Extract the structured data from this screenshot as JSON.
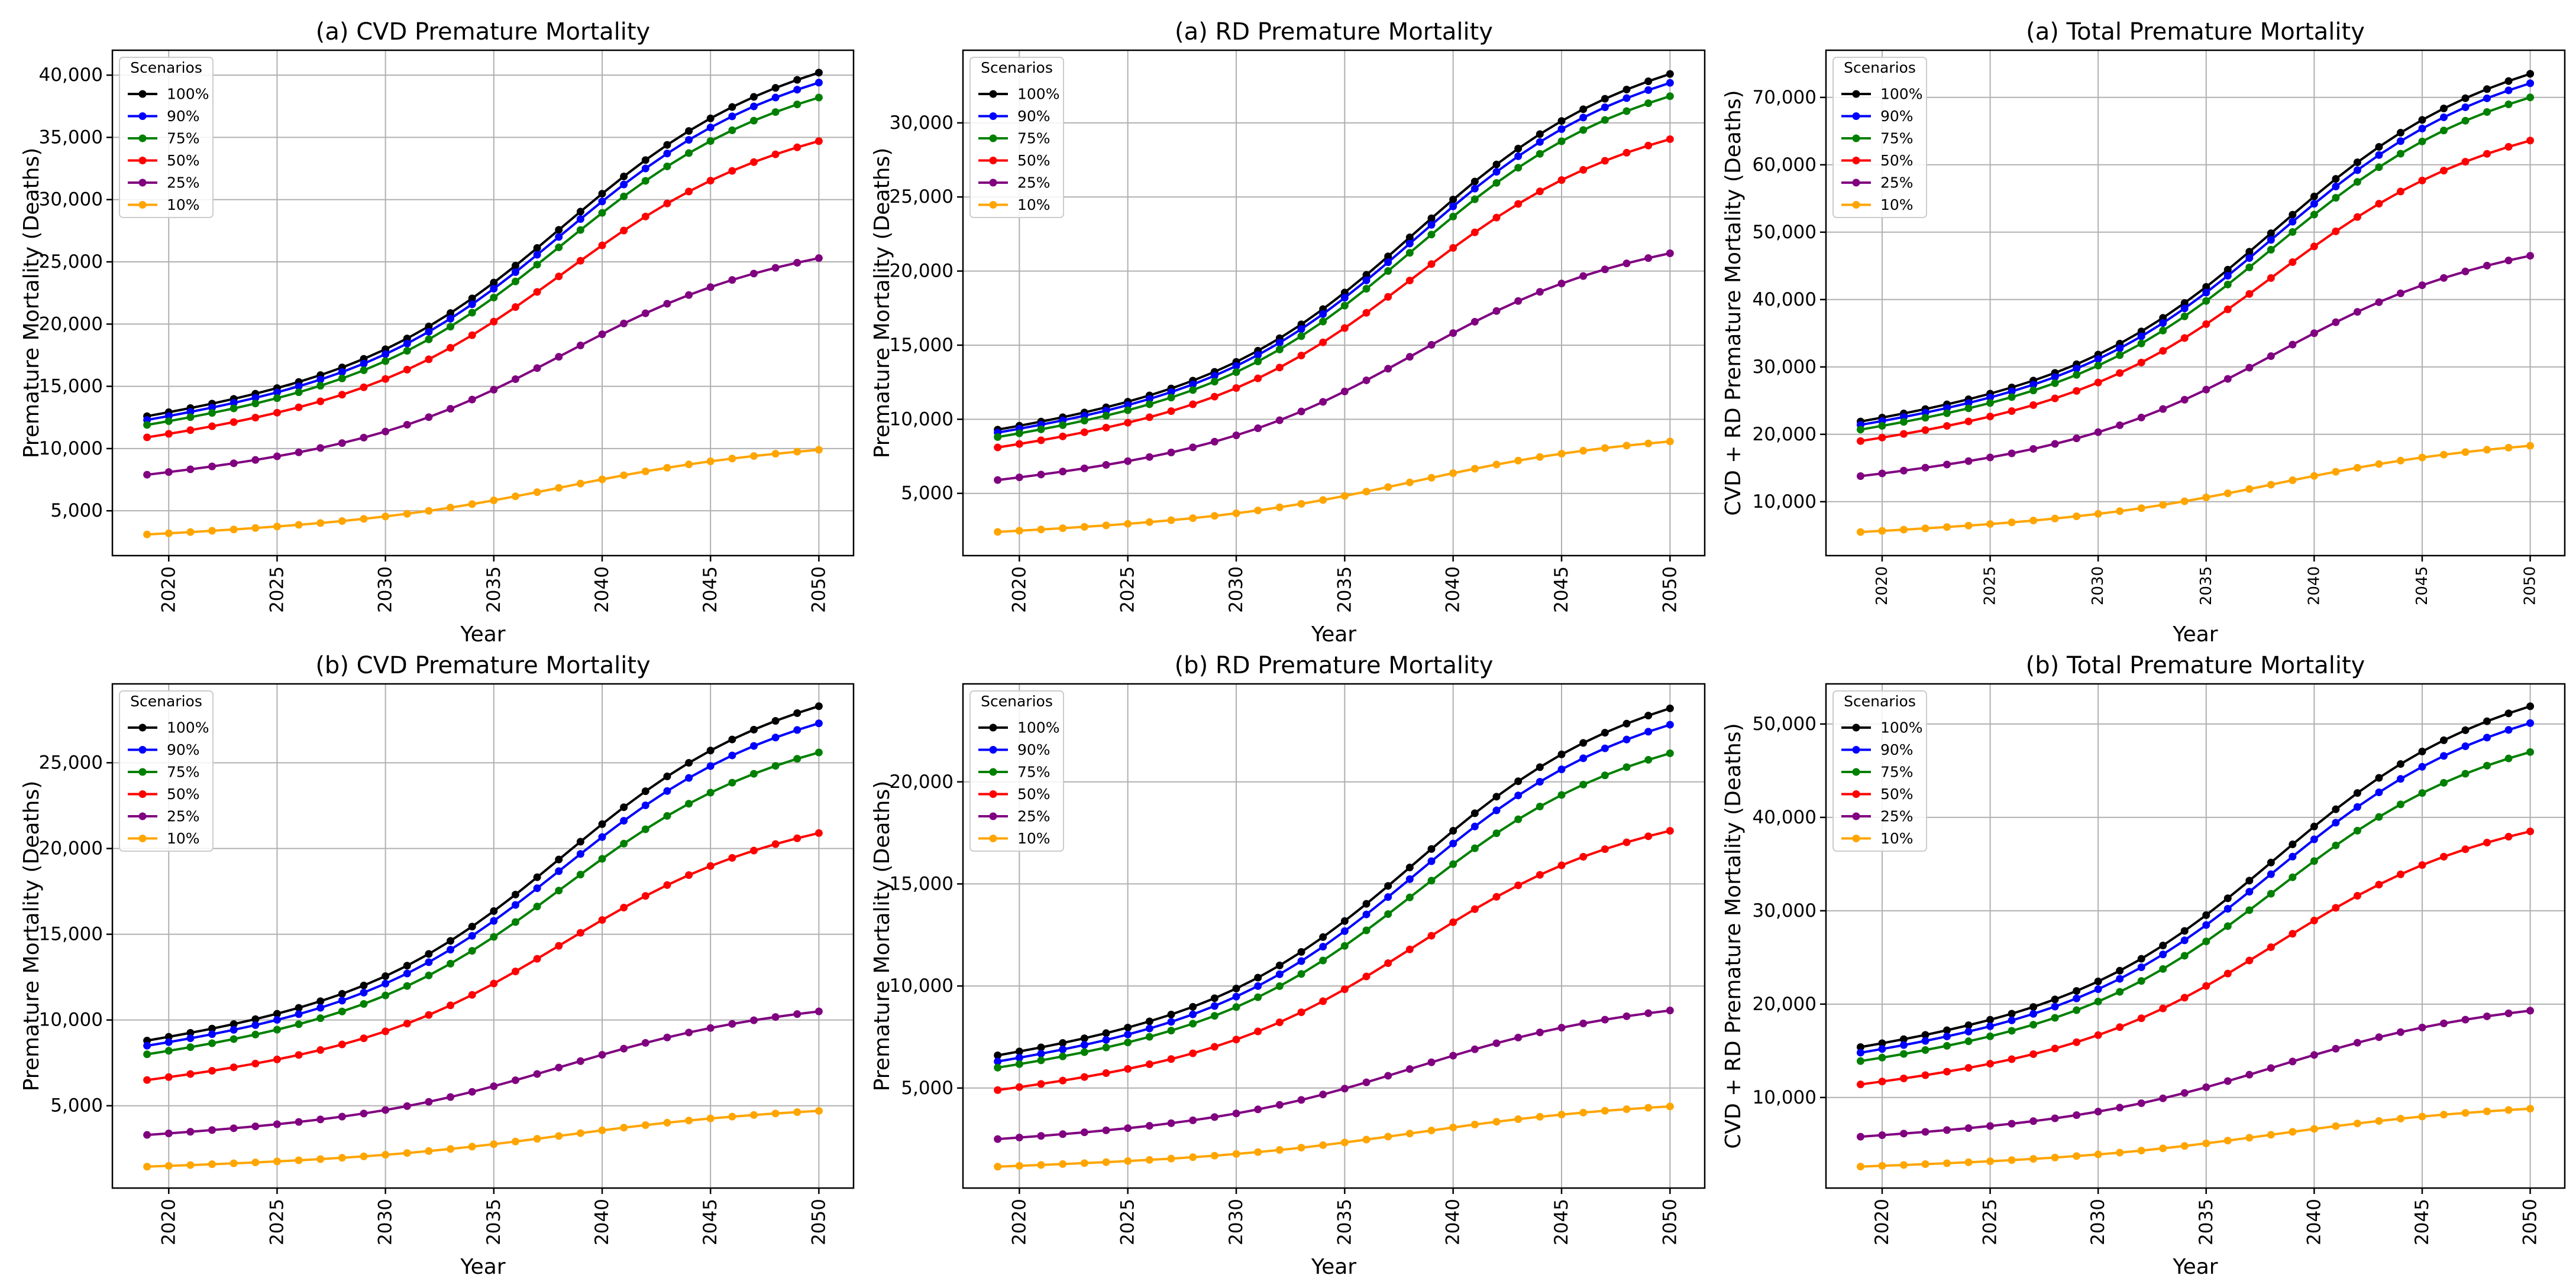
{
  "colors": {
    "100%": "#000000",
    "90%": "#0000ff",
    "75%": "#008000",
    "50%": "#ff0000",
    "25%": "#800080",
    "10%": "#ffa500",
    "grid": "#b0b0b0"
  },
  "chart_data": [
    {
      "type": "line",
      "title": "(a) CVD Premature Mortality",
      "xlabel": "Year",
      "ylabel": "Premature Mortality (Deaths)",
      "legend_title": "Scenarios",
      "legend_position": "top-left",
      "grid": true,
      "x": [
        2019,
        2020,
        2021,
        2022,
        2023,
        2024,
        2025,
        2026,
        2027,
        2028,
        2029,
        2030,
        2031,
        2032,
        2033,
        2034,
        2035,
        2036,
        2037,
        2038,
        2039,
        2040,
        2041,
        2042,
        2043,
        2044,
        2045,
        2046,
        2047,
        2048,
        2049,
        2050
      ],
      "xlim": [
        2017.4,
        2051.6
      ],
      "xticks": [
        2020,
        2025,
        2030,
        2035,
        2040,
        2045,
        2050
      ],
      "xtick_labels": [
        "2020",
        "2025",
        "2030",
        "2035",
        "2040",
        "2045",
        "2050"
      ],
      "ylim": [
        1400,
        42000
      ],
      "yticks": [
        5000,
        10000,
        15000,
        20000,
        25000,
        30000,
        35000,
        40000
      ],
      "ytick_labels": [
        "5,000",
        "10,000",
        "15,000",
        "20,000",
        "25,000",
        "30,000",
        "35,000",
        "40,000"
      ],
      "series": [
        {
          "name": "100%",
          "start": 12600,
          "end": 40200,
          "mid": 0.28
        },
        {
          "name": "90%",
          "start": 12300,
          "end": 39400,
          "mid": 0.28
        },
        {
          "name": "75%",
          "start": 11900,
          "end": 38200,
          "mid": 0.28
        },
        {
          "name": "50%",
          "start": 10900,
          "end": 34700,
          "mid": 0.29
        },
        {
          "name": "25%",
          "start": 7900,
          "end": 25300,
          "mid": 0.3
        },
        {
          "name": "10%",
          "start": 3100,
          "end": 9900,
          "mid": 0.36
        }
      ]
    },
    {
      "type": "line",
      "title": "(a) RD Premature Mortality",
      "xlabel": "Year",
      "ylabel": "Premature Mortality (Deaths)",
      "legend_title": "Scenarios",
      "legend_position": "top-left",
      "grid": true,
      "x": [
        2019,
        2020,
        2021,
        2022,
        2023,
        2024,
        2025,
        2026,
        2027,
        2028,
        2029,
        2030,
        2031,
        2032,
        2033,
        2034,
        2035,
        2036,
        2037,
        2038,
        2039,
        2040,
        2041,
        2042,
        2043,
        2044,
        2045,
        2046,
        2047,
        2048,
        2049,
        2050
      ],
      "xlim": [
        2017.4,
        2051.6
      ],
      "xticks": [
        2020,
        2025,
        2030,
        2035,
        2040,
        2045,
        2050
      ],
      "xtick_labels": [
        "2020",
        "2025",
        "2030",
        "2035",
        "2040",
        "2045",
        "2050"
      ],
      "ylim": [
        800,
        34900
      ],
      "yticks": [
        5000,
        10000,
        15000,
        20000,
        25000,
        30000
      ],
      "ytick_labels": [
        "5,000",
        "10,000",
        "15,000",
        "20,000",
        "25,000",
        "30,000"
      ],
      "series": [
        {
          "name": "100%",
          "start": 9300,
          "end": 33300,
          "mid": 0.26
        },
        {
          "name": "90%",
          "start": 9100,
          "end": 32700,
          "mid": 0.26
        },
        {
          "name": "75%",
          "start": 8800,
          "end": 31800,
          "mid": 0.26
        },
        {
          "name": "50%",
          "start": 8100,
          "end": 28900,
          "mid": 0.27
        },
        {
          "name": "25%",
          "start": 5900,
          "end": 21200,
          "mid": 0.29
        },
        {
          "name": "10%",
          "start": 2400,
          "end": 8500,
          "mid": 0.33
        }
      ]
    },
    {
      "type": "line",
      "title": "(a) Total Premature Mortality",
      "xlabel": "Year",
      "ylabel": "CVD + RD Premature Mortality (Deaths)",
      "legend_title": "Scenarios",
      "legend_position": "top-left",
      "grid": true,
      "x": [
        2019,
        2020,
        2021,
        2022,
        2023,
        2024,
        2025,
        2026,
        2027,
        2028,
        2029,
        2030,
        2031,
        2032,
        2033,
        2034,
        2035,
        2036,
        2037,
        2038,
        2039,
        2040,
        2041,
        2042,
        2043,
        2044,
        2045,
        2046,
        2047,
        2048,
        2049,
        2050
      ],
      "xlim": [
        2017.4,
        2051.6
      ],
      "xticks": [
        2020,
        2025,
        2030,
        2035,
        2040,
        2045,
        2050
      ],
      "xtick_labels": [
        "2020",
        "2025",
        "2030",
        "2035",
        "2040",
        "2045",
        "2050"
      ],
      "ylim": [
        2000,
        77000
      ],
      "yticks": [
        10000,
        20000,
        30000,
        40000,
        50000,
        60000,
        70000
      ],
      "ytick_labels": [
        "10,000",
        "20,000",
        "30,000",
        "40,000",
        "50,000",
        "60,000",
        "70,000"
      ],
      "series": [
        {
          "name": "100%",
          "start": 21900,
          "end": 73500,
          "mid": 0.27
        },
        {
          "name": "90%",
          "start": 21400,
          "end": 72100,
          "mid": 0.27
        },
        {
          "name": "75%",
          "start": 20700,
          "end": 70000,
          "mid": 0.27
        },
        {
          "name": "50%",
          "start": 19000,
          "end": 63600,
          "mid": 0.28
        },
        {
          "name": "25%",
          "start": 13800,
          "end": 46500,
          "mid": 0.3
        },
        {
          "name": "10%",
          "start": 5500,
          "end": 18300,
          "mid": 0.35
        }
      ]
    },
    {
      "type": "line",
      "title": "(b) CVD Premature Mortality",
      "xlabel": "Year",
      "ylabel": "Premature Mortality (Deaths)",
      "legend_title": "Scenarios",
      "legend_position": "top-left",
      "grid": true,
      "x": [
        2019,
        2020,
        2021,
        2022,
        2023,
        2024,
        2025,
        2026,
        2027,
        2028,
        2029,
        2030,
        2031,
        2032,
        2033,
        2034,
        2035,
        2036,
        2037,
        2038,
        2039,
        2040,
        2041,
        2042,
        2043,
        2044,
        2045,
        2046,
        2047,
        2048,
        2049,
        2050
      ],
      "xlim": [
        2017.4,
        2051.6
      ],
      "xticks": [
        2020,
        2025,
        2030,
        2035,
        2040,
        2045,
        2050
      ],
      "xtick_labels": [
        "2020",
        "2025",
        "2030",
        "2035",
        "2040",
        "2045",
        "2050"
      ],
      "ylim": [
        200,
        29600
      ],
      "yticks": [
        5000,
        10000,
        15000,
        20000,
        25000
      ],
      "ytick_labels": [
        "5,000",
        "10,000",
        "15,000",
        "20,000",
        "25,000"
      ],
      "series": [
        {
          "name": "100%",
          "start": 8800,
          "end": 28300,
          "mid": 0.27
        },
        {
          "name": "90%",
          "start": 8500,
          "end": 27300,
          "mid": 0.27
        },
        {
          "name": "75%",
          "start": 8000,
          "end": 25600,
          "mid": 0.28
        },
        {
          "name": "50%",
          "start": 6500,
          "end": 20900,
          "mid": 0.29
        },
        {
          "name": "25%",
          "start": 3300,
          "end": 10500,
          "mid": 0.31
        },
        {
          "name": "10%",
          "start": 1450,
          "end": 4700,
          "mid": 0.36
        }
      ]
    },
    {
      "type": "line",
      "title": "(b) RD Premature Mortality",
      "xlabel": "Year",
      "ylabel": "Premature Mortality (Deaths)",
      "legend_title": "Scenarios",
      "legend_position": "top-left",
      "grid": true,
      "x": [
        2019,
        2020,
        2021,
        2022,
        2023,
        2024,
        2025,
        2026,
        2027,
        2028,
        2029,
        2030,
        2031,
        2032,
        2033,
        2034,
        2035,
        2036,
        2037,
        2038,
        2039,
        2040,
        2041,
        2042,
        2043,
        2044,
        2045,
        2046,
        2047,
        2048,
        2049,
        2050
      ],
      "xlim": [
        2017.4,
        2051.6
      ],
      "xticks": [
        2020,
        2025,
        2030,
        2035,
        2040,
        2045,
        2050
      ],
      "xtick_labels": [
        "2020",
        "2025",
        "2030",
        "2035",
        "2040",
        "2045",
        "2050"
      ],
      "ylim": [
        100,
        24800
      ],
      "yticks": [
        5000,
        10000,
        15000,
        20000
      ],
      "ytick_labels": [
        "5,000",
        "10,000",
        "15,000",
        "20,000"
      ],
      "series": [
        {
          "name": "100%",
          "start": 6600,
          "end": 23600,
          "mid": 0.27
        },
        {
          "name": "90%",
          "start": 6300,
          "end": 22800,
          "mid": 0.27
        },
        {
          "name": "75%",
          "start": 6000,
          "end": 21400,
          "mid": 0.27
        },
        {
          "name": "50%",
          "start": 4900,
          "end": 17600,
          "mid": 0.28
        },
        {
          "name": "25%",
          "start": 2500,
          "end": 8800,
          "mid": 0.3
        },
        {
          "name": "10%",
          "start": 1150,
          "end": 4100,
          "mid": 0.35
        }
      ]
    },
    {
      "type": "line",
      "title": "(b) Total Premature Mortality",
      "xlabel": "Year",
      "ylabel": "CVD + RD Premature Mortality (Deaths)",
      "legend_title": "Scenarios",
      "legend_position": "top-left",
      "grid": true,
      "x": [
        2019,
        2020,
        2021,
        2022,
        2023,
        2024,
        2025,
        2026,
        2027,
        2028,
        2029,
        2030,
        2031,
        2032,
        2033,
        2034,
        2035,
        2036,
        2037,
        2038,
        2039,
        2040,
        2041,
        2042,
        2043,
        2044,
        2045,
        2046,
        2047,
        2048,
        2049,
        2050
      ],
      "xlim": [
        2017.4,
        2051.6
      ],
      "xticks": [
        2020,
        2025,
        2030,
        2035,
        2040,
        2045,
        2050
      ],
      "xtick_labels": [
        "2020",
        "2025",
        "2030",
        "2035",
        "2040",
        "2045",
        "2050"
      ],
      "ylim": [
        300,
        54300
      ],
      "yticks": [
        10000,
        20000,
        30000,
        40000,
        50000
      ],
      "ytick_labels": [
        "10,000",
        "20,000",
        "30,000",
        "40,000",
        "50,000"
      ],
      "series": [
        {
          "name": "100%",
          "start": 15400,
          "end": 51900,
          "mid": 0.27
        },
        {
          "name": "90%",
          "start": 14800,
          "end": 50100,
          "mid": 0.27
        },
        {
          "name": "75%",
          "start": 13900,
          "end": 47000,
          "mid": 0.27
        },
        {
          "name": "50%",
          "start": 11400,
          "end": 38500,
          "mid": 0.28
        },
        {
          "name": "25%",
          "start": 5800,
          "end": 19300,
          "mid": 0.3
        },
        {
          "name": "10%",
          "start": 2600,
          "end": 8800,
          "mid": 0.35
        }
      ]
    }
  ]
}
